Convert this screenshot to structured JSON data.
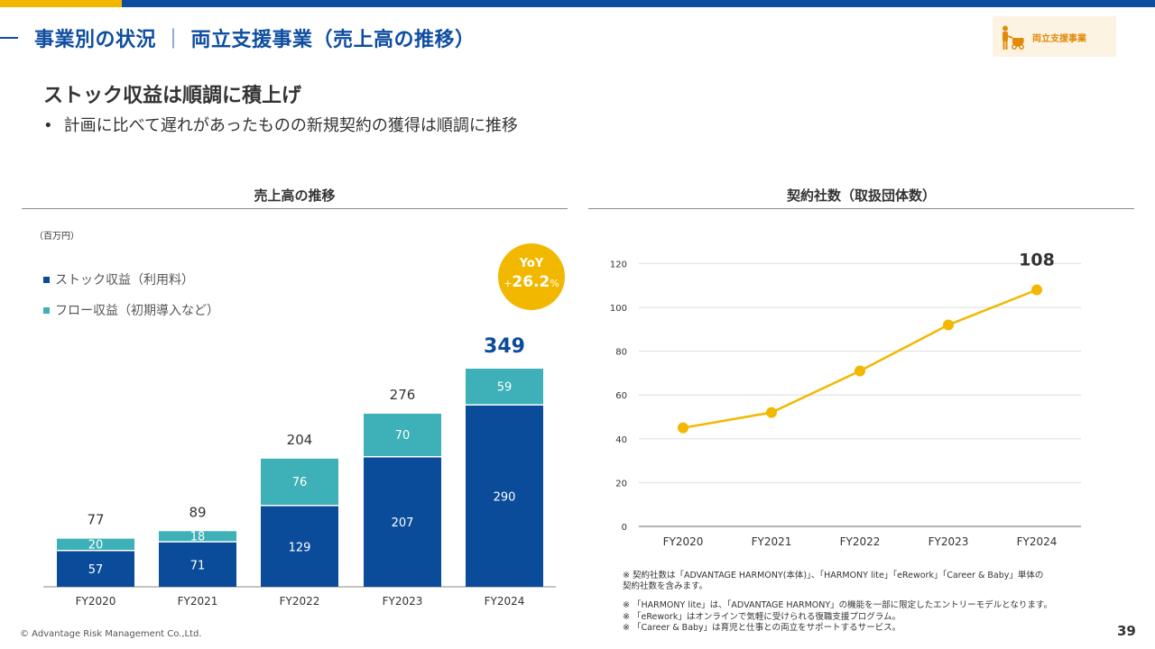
{
  "header": {
    "section": "事業別の状況",
    "separator": "｜",
    "title": "両立支援事業（売上高の推移）",
    "category_badge": "両立支援事業",
    "category_icon": "parent-with-stroller-icon"
  },
  "headline": "ストック収益は順調に積上げ",
  "bullet": "計画に比べて遅れがあったものの新規契約の獲得は順調に推移",
  "colors": {
    "brand": "#0e4da0",
    "stock": "#0a4c9a",
    "flow": "#3db0b8",
    "accent": "#f2b800"
  },
  "chart_data": [
    {
      "type": "bar",
      "title": "売上高の推移",
      "unit": "（百万円）",
      "categories": [
        "FY2020",
        "FY2021",
        "FY2022",
        "FY2023",
        "FY2024"
      ],
      "series": [
        {
          "name": "ストック収益（利用料）",
          "values": [
            57,
            71,
            129,
            207,
            290
          ]
        },
        {
          "name": "フロー収益（初期導入など）",
          "values": [
            20,
            18,
            76,
            70,
            59
          ]
        }
      ],
      "totals": [
        "77",
        "89",
        "204",
        "276",
        "349"
      ],
      "yoy_label": "YoY",
      "yoy_value": "+26.2%",
      "ylim": [
        0,
        349
      ]
    },
    {
      "type": "line",
      "title": "契約社数（取扱団体数）",
      "categories": [
        "FY2020",
        "FY2021",
        "FY2022",
        "FY2023",
        "FY2024"
      ],
      "values": [
        45,
        52,
        71,
        92,
        108
      ],
      "highlight_label": "108",
      "yticks": [
        "0",
        "20",
        "40",
        "60",
        "80",
        "100",
        "120"
      ],
      "ylim": [
        0,
        120
      ],
      "grid": true
    }
  ],
  "notes": [
    "※ 契約社数は「ADVANTAGE HARMONY(本体)」、「HARMONY lite」「eRework」「Career & Baby」単体の",
    "契約社数を含みます。",
    "※ 「HARMONY lite」は、「ADVANTAGE HARMONY」の機能を一部に限定したエントリーモデルとなります。",
    "※ 「eRework」はオンラインで気軽に受けられる復職支援プログラム。",
    "※ 「Career & Baby」は育児と仕事との両立をサポートするサービス。"
  ],
  "footer": {
    "copyright": "© Advantage Risk Management Co.,Ltd.",
    "page_number": "39"
  }
}
